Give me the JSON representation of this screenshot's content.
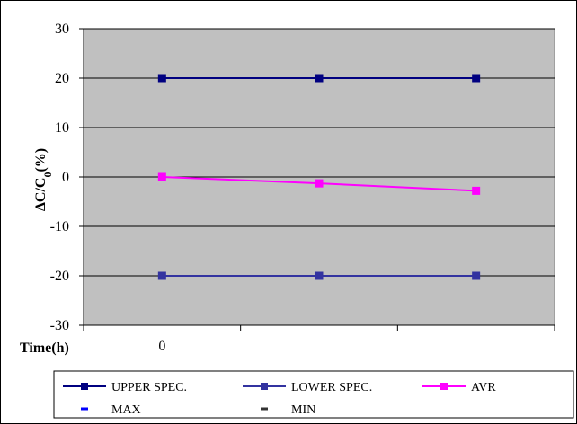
{
  "chart_data": {
    "type": "line",
    "title": "",
    "xlabel": "Time(h)",
    "ylabel": "ΔC/C0(%)",
    "ylabel_main": "ΔC/C",
    "ylabel_sub": "0",
    "ylabel_tail": "(%)",
    "ylim": [
      -30,
      30
    ],
    "yticks": [
      30,
      20,
      10,
      0,
      -10,
      -20,
      -30
    ],
    "x_categories": [
      "0",
      "",
      ""
    ],
    "grid": true,
    "legend_position": "bottom",
    "colors": {
      "plot_bg": "#c0c0c0",
      "upper": "#000080",
      "lower": "#3333a0",
      "avr": "#ff00ff",
      "max": "#0000ff",
      "min": "#333333"
    },
    "series": [
      {
        "name": "UPPER SPEC.",
        "values": [
          20,
          20,
          20
        ],
        "style": "line-square"
      },
      {
        "name": "LOWER SPEC.",
        "values": [
          -20,
          -20,
          -20
        ],
        "style": "line-square"
      },
      {
        "name": "AVR",
        "values": [
          0,
          -1.3,
          -2.8
        ],
        "style": "line-square"
      },
      {
        "name": "MAX",
        "values": [
          0,
          -0.8,
          -2.5
        ],
        "style": "dash"
      },
      {
        "name": "MIN",
        "values": [
          0,
          -1.5,
          -3.2
        ],
        "style": "dash"
      }
    ]
  }
}
